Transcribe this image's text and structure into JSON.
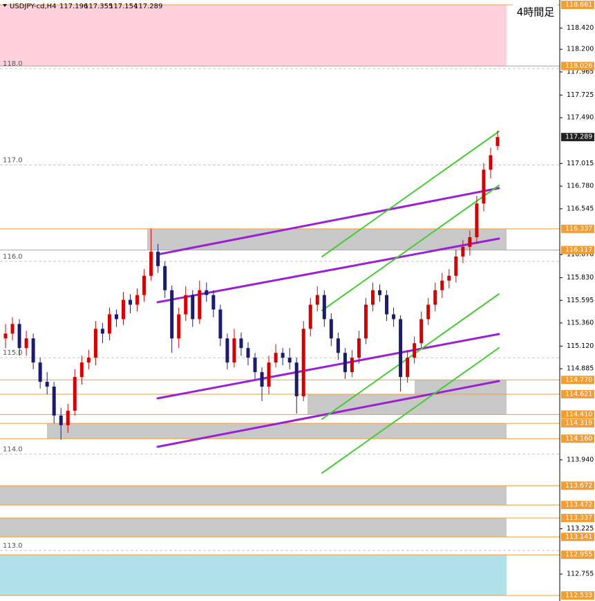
{
  "chart_data": {
    "type": "candlestick",
    "symbol": "USDJPY-cd,H4",
    "title": "4時間足",
    "up_color": "#d40000",
    "down_color": "#1c1c6e",
    "ylim": [
      112.533,
      118.661
    ],
    "yticks": [
      {
        "value": 118.42,
        "label": "118.420"
      },
      {
        "value": 118.2,
        "label": "118.200"
      },
      117.965,
      117.725,
      {
        "value": 117.49,
        "label": "117.490"
      },
      117.015,
      {
        "value": 116.78,
        "label": "116.780"
      },
      116.545,
      {
        "value": 116.07,
        "label": "116.070"
      },
      {
        "value": 115.83,
        "label": "115.830"
      },
      115.595,
      {
        "value": 115.36,
        "label": "115.360"
      },
      {
        "value": 115.12,
        "label": "115.120"
      },
      114.885,
      {
        "value": 113.94,
        "label": "113.940"
      },
      113.225,
      112.755
    ],
    "round_levels": [
      {
        "value": 118,
        "label": "118.0"
      },
      {
        "value": 117,
        "label": "117.0"
      },
      {
        "value": 116,
        "label": "116.0"
      },
      {
        "value": 115,
        "label": "115.0"
      },
      {
        "value": 114,
        "label": "114.0"
      },
      {
        "value": 113,
        "label": "113.0"
      }
    ],
    "levels": [
      118.661,
      118.026,
      116.337,
      116.117,
      {
        "value": 114.77,
        "label": "114.770"
      },
      114.621,
      {
        "value": 114.41,
        "label": "114.410"
      },
      114.319,
      {
        "value": 114.16,
        "label": "114.160"
      },
      113.672,
      113.472,
      113.337,
      113.141,
      112.955,
      112.533
    ],
    "level_color": "#f39c34",
    "ohlc": [
      [
        115.2,
        115.35,
        115.1,
        115.25
      ],
      [
        115.25,
        115.42,
        115.18,
        115.35
      ],
      [
        115.35,
        115.4,
        115.02,
        115.1
      ],
      [
        115.1,
        115.28,
        115.02,
        115.2
      ],
      [
        115.2,
        115.25,
        114.88,
        114.95
      ],
      [
        114.95,
        115.0,
        114.68,
        114.75
      ],
      [
        114.75,
        114.85,
        114.62,
        114.7
      ],
      [
        114.7,
        114.75,
        114.32,
        114.4
      ],
      [
        114.4,
        114.48,
        114.15,
        114.3
      ],
      [
        114.3,
        114.52,
        114.22,
        114.45
      ],
      [
        114.45,
        114.88,
        114.4,
        114.8
      ],
      [
        114.8,
        115.02,
        114.72,
        114.95
      ],
      [
        114.95,
        115.08,
        114.88,
        115.0
      ],
      [
        115.0,
        115.38,
        114.92,
        115.3
      ],
      [
        115.3,
        115.36,
        115.15,
        115.25
      ],
      [
        115.25,
        115.52,
        115.18,
        115.45
      ],
      [
        115.45,
        115.5,
        115.32,
        115.4
      ],
      [
        115.4,
        115.68,
        115.34,
        115.6
      ],
      [
        115.6,
        115.66,
        115.46,
        115.55
      ],
      [
        115.55,
        115.72,
        115.48,
        115.65
      ],
      [
        115.65,
        115.92,
        115.58,
        115.85
      ],
      [
        115.85,
        116.34,
        115.8,
        116.1
      ],
      [
        116.1,
        116.18,
        115.88,
        115.95
      ],
      [
        115.95,
        116.0,
        115.62,
        115.7
      ],
      [
        115.7,
        115.75,
        115.05,
        115.2
      ],
      [
        115.2,
        115.52,
        115.1,
        115.45
      ],
      [
        115.45,
        115.74,
        115.38,
        115.65
      ],
      [
        115.65,
        115.7,
        115.32,
        115.4
      ],
      [
        115.4,
        115.8,
        115.35,
        115.7
      ],
      [
        115.7,
        115.78,
        115.58,
        115.65
      ],
      [
        115.65,
        115.7,
        115.42,
        115.5
      ],
      [
        115.5,
        115.55,
        115.12,
        115.2
      ],
      [
        115.2,
        115.25,
        114.88,
        114.95
      ],
      [
        114.95,
        115.3,
        114.9,
        115.2
      ],
      [
        115.2,
        115.26,
        115.02,
        115.1
      ],
      [
        115.1,
        115.16,
        114.92,
        115.0
      ],
      [
        115.0,
        115.05,
        114.78,
        114.85
      ],
      [
        114.85,
        114.9,
        114.55,
        114.7
      ],
      [
        114.7,
        115.02,
        114.62,
        114.95
      ],
      [
        114.95,
        115.14,
        114.9,
        115.05
      ],
      [
        115.05,
        115.1,
        114.92,
        115.0
      ],
      [
        115.0,
        115.1,
        114.88,
        114.95
      ],
      [
        114.95,
        115.0,
        114.42,
        114.6
      ],
      [
        114.6,
        115.38,
        114.55,
        115.3
      ],
      [
        115.3,
        115.62,
        115.22,
        115.55
      ],
      [
        115.55,
        115.74,
        115.48,
        115.65
      ],
      [
        115.65,
        115.7,
        115.32,
        115.4
      ],
      [
        115.4,
        115.46,
        115.12,
        115.2
      ],
      [
        115.2,
        115.26,
        114.98,
        115.05
      ],
      [
        115.05,
        115.1,
        114.78,
        114.85
      ],
      [
        114.85,
        115.08,
        114.8,
        115.0
      ],
      [
        115.0,
        115.28,
        114.94,
        115.2
      ],
      [
        115.2,
        115.62,
        115.14,
        115.55
      ],
      [
        115.55,
        115.78,
        115.48,
        115.7
      ],
      [
        115.7,
        115.76,
        115.58,
        115.65
      ],
      [
        115.65,
        115.7,
        115.38,
        115.45
      ],
      [
        115.45,
        115.52,
        115.32,
        115.4
      ],
      [
        115.4,
        115.44,
        114.65,
        114.8
      ],
      [
        114.8,
        115.08,
        114.74,
        115.0
      ],
      [
        115.0,
        115.22,
        114.94,
        115.15
      ],
      [
        115.15,
        115.48,
        115.1,
        115.4
      ],
      [
        115.4,
        115.62,
        115.34,
        115.55
      ],
      [
        115.55,
        115.78,
        115.48,
        115.7
      ],
      [
        115.7,
        115.88,
        115.62,
        115.8
      ],
      [
        115.8,
        115.92,
        115.72,
        115.85
      ],
      [
        115.85,
        116.12,
        115.78,
        116.05
      ],
      [
        116.05,
        116.22,
        115.98,
        116.15
      ],
      [
        116.15,
        116.32,
        116.06,
        116.25
      ],
      [
        116.25,
        116.68,
        116.18,
        116.6
      ],
      [
        116.6,
        117.02,
        116.52,
        116.95
      ],
      [
        116.95,
        117.18,
        116.86,
        117.1
      ],
      [
        117.196,
        117.355,
        117.154,
        117.289
      ]
    ]
  }
}
